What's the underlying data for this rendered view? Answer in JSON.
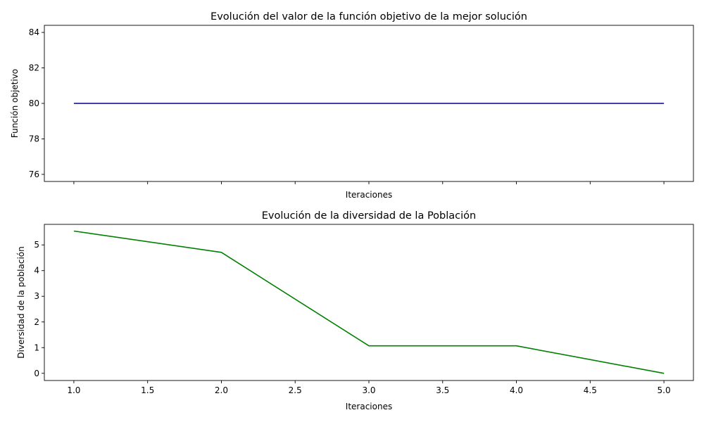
{
  "chart_data": [
    {
      "type": "line",
      "title": "Evolución del valor de la función objetivo de la mejor solución",
      "xlabel": "Iteraciones",
      "ylabel": "Función objetivo",
      "x": [
        1,
        2,
        3,
        4,
        5
      ],
      "xlim": [
        0.8,
        5.2
      ],
      "ylim": [
        75.6,
        84.4
      ],
      "yticks": [
        76,
        78,
        80,
        82,
        84
      ],
      "xticks": [
        1.0,
        1.5,
        2.0,
        2.5,
        3.0,
        3.5,
        4.0,
        4.5,
        5.0
      ],
      "show_xtick_labels": false,
      "grid": false,
      "series": [
        {
          "values": [
            80,
            80,
            80,
            80,
            80
          ],
          "color": "#00008b"
        }
      ]
    },
    {
      "type": "line",
      "title": "Evolución de la diversidad de la Población",
      "xlabel": "Iteraciones",
      "ylabel": "Diversidad de la población",
      "x": [
        1,
        2,
        3,
        4,
        5
      ],
      "xlim": [
        0.8,
        5.2
      ],
      "ylim": [
        -0.28,
        5.8
      ],
      "yticks": [
        0,
        1,
        2,
        3,
        4,
        5
      ],
      "xticks": [
        1.0,
        1.5,
        2.0,
        2.5,
        3.0,
        3.5,
        4.0,
        4.5,
        5.0
      ],
      "show_xtick_labels": true,
      "grid": false,
      "series": [
        {
          "values": [
            5.54,
            4.71,
            1.07,
            1.07,
            0.0
          ],
          "color": "#008000"
        }
      ]
    }
  ]
}
